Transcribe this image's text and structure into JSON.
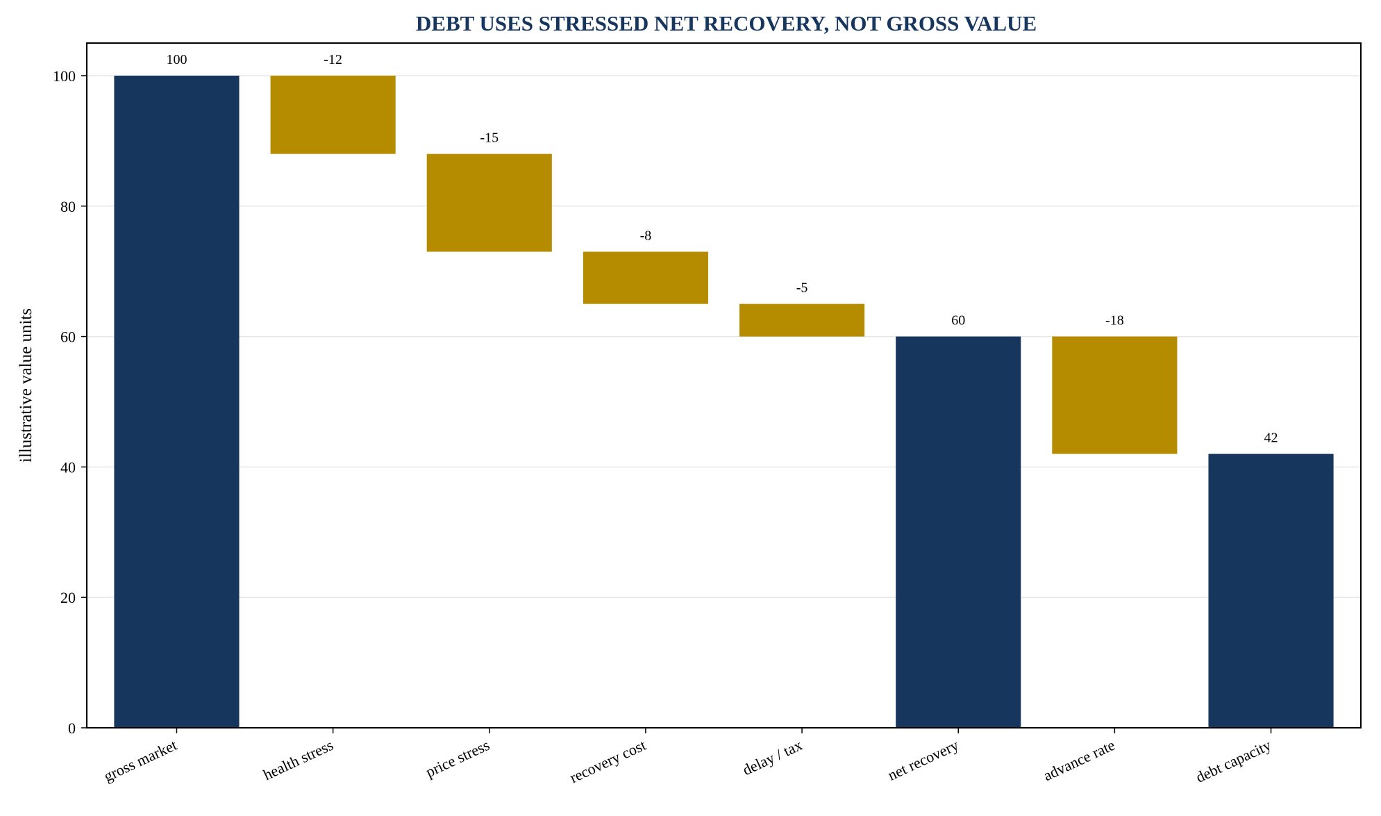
{
  "chart_data": {
    "type": "bar",
    "subtype": "waterfall",
    "title": "DEBT USES STRESSED NET RECOVERY, NOT GROSS VALUE",
    "xlabel": "",
    "ylabel": "illustrative value units",
    "ylim": [
      0,
      105
    ],
    "yticks": [
      0,
      20,
      40,
      60,
      80,
      100
    ],
    "grid": "horizontal",
    "colors": {
      "total": "#17365d",
      "change": "#b58b00",
      "title": "#17365d",
      "grid": "#e6e6e6"
    },
    "steps": [
      {
        "category": "gross market",
        "kind": "total",
        "value": 100,
        "label": "100"
      },
      {
        "category": "health stress",
        "kind": "change",
        "value": -12,
        "label": "-12"
      },
      {
        "category": "price stress",
        "kind": "change",
        "value": -15,
        "label": "-15"
      },
      {
        "category": "recovery cost",
        "kind": "change",
        "value": -8,
        "label": "-8"
      },
      {
        "category": "delay / tax",
        "kind": "change",
        "value": -5,
        "label": "-5"
      },
      {
        "category": "net recovery",
        "kind": "total",
        "value": 60,
        "label": "60"
      },
      {
        "category": "advance rate",
        "kind": "change",
        "value": -18,
        "label": "-18"
      },
      {
        "category": "debt capacity",
        "kind": "total",
        "value": 42,
        "label": "42"
      }
    ]
  }
}
